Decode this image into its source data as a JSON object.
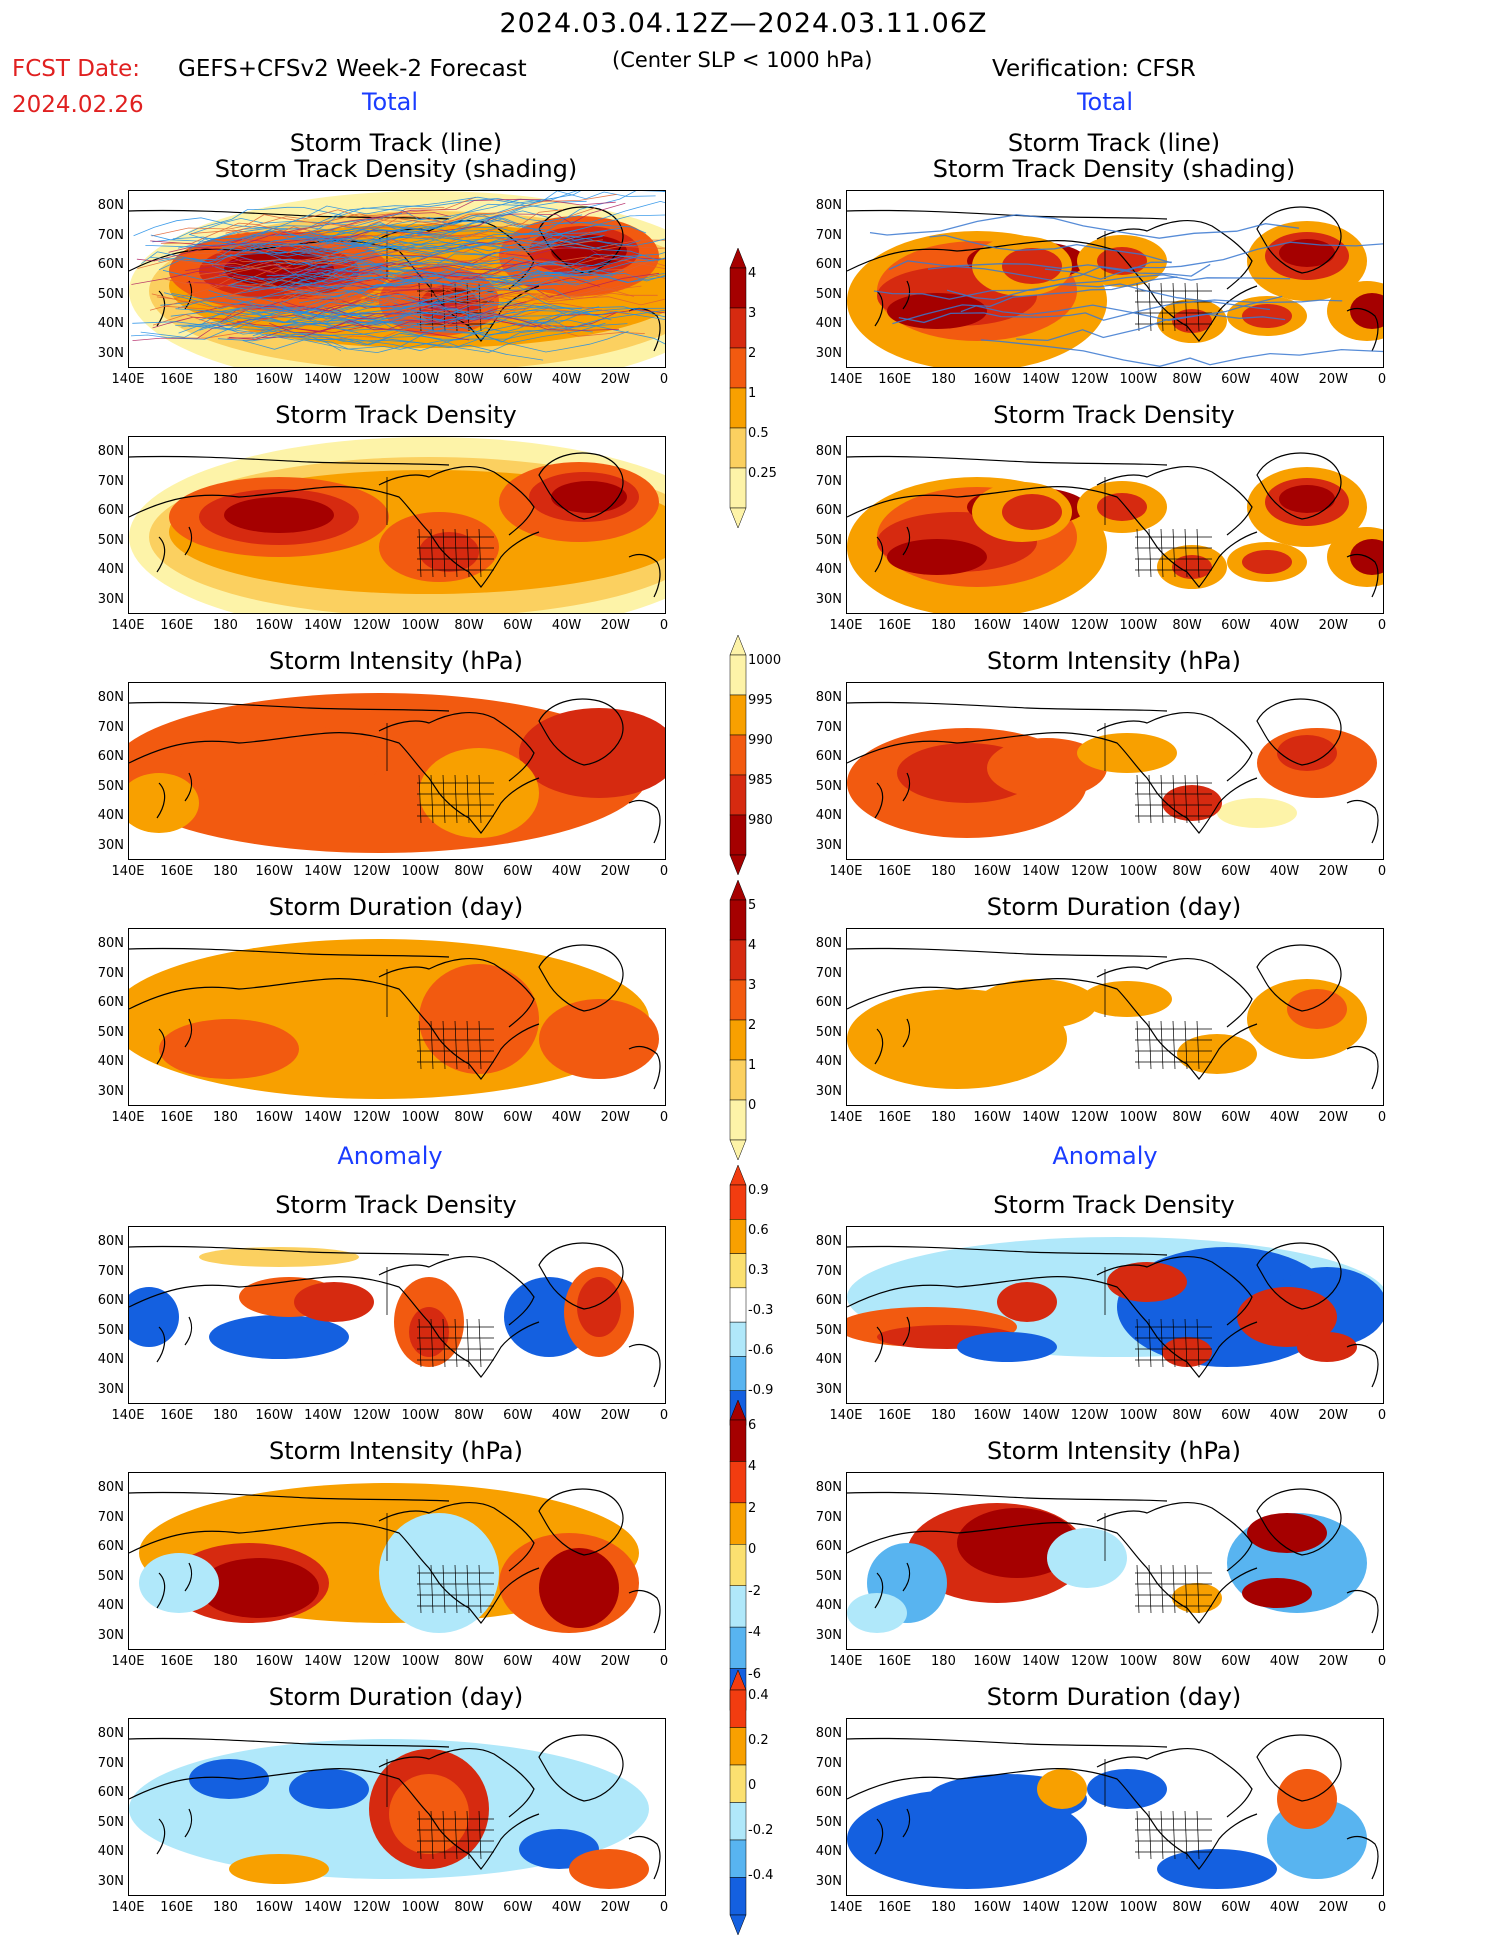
{
  "header": {
    "title": "2024.03.04.12Z—2024.03.11.06Z",
    "fcst_label": "FCST Date:",
    "fcst_model": "GEFS+CFSv2 Week-2 Forecast",
    "fcst_date": "2024.02.26",
    "slp_note": "(Center SLP < 1000 hPa)",
    "verification": "Verification: CFSR"
  },
  "sections": {
    "total": "Total",
    "anomaly": "Anomaly"
  },
  "rows": [
    {
      "title": "Storm Track (line)\nStorm Track Density (shading)"
    },
    {
      "title": "Storm Track Density"
    },
    {
      "title": "Storm Intensity (hPa)"
    },
    {
      "title": "Storm Duration (day)"
    },
    {
      "title": "Storm Track Density"
    },
    {
      "title": "Storm Intensity (hPa)"
    },
    {
      "title": "Storm Duration (day)"
    }
  ],
  "axes": {
    "lat_labels": [
      "80N",
      "70N",
      "60N",
      "50N",
      "40N",
      "30N"
    ],
    "lon_labels": [
      "140E",
      "160E",
      "180",
      "160W",
      "140W",
      "120W",
      "100W",
      "80W",
      "60W",
      "40W",
      "20W",
      "0"
    ]
  },
  "colorbars": [
    {
      "name": "total-density",
      "labels": [
        "4",
        "3",
        "2",
        "1",
        "0.5",
        "0.25"
      ],
      "colors": [
        "#a50000",
        "#d62a10",
        "#f25a10",
        "#f8a000",
        "#fbd060",
        "#fdf3a8"
      ]
    },
    {
      "name": "total-intensity",
      "labels": [
        "1000",
        "995",
        "990",
        "985",
        "980"
      ],
      "colors": [
        "#fdf3a8",
        "#f8a000",
        "#f25a10",
        "#d62a10",
        "#a50000"
      ]
    },
    {
      "name": "total-duration",
      "labels": [
        "5",
        "4",
        "3",
        "2",
        "1",
        "0"
      ],
      "colors": [
        "#a50000",
        "#d62a10",
        "#f25a10",
        "#f8a000",
        "#fbd060",
        "#fdf3a8"
      ]
    },
    {
      "name": "anomaly-density",
      "labels": [
        "0.9",
        "0.6",
        "0.3",
        "-0.3",
        "-0.6",
        "-0.9"
      ],
      "colors": [
        "#f23c10",
        "#f8a000",
        "#fbe070",
        "#ffffff",
        "#b0e8fa",
        "#58b4f0",
        "#1460e0"
      ]
    },
    {
      "name": "anomaly-intensity",
      "labels": [
        "6",
        "4",
        "2",
        "0",
        "-2",
        "-4",
        "-6"
      ],
      "colors": [
        "#a50000",
        "#f23c10",
        "#f8a000",
        "#fbe070",
        "#b0e8fa",
        "#58b4f0",
        "#1460e0"
      ]
    },
    {
      "name": "anomaly-duration",
      "labels": [
        "0.4",
        "0.2",
        "0",
        "-0.2",
        "-0.4"
      ],
      "colors": [
        "#f23c10",
        "#f8a000",
        "#fbe070",
        "#b0e8fa",
        "#58b4f0",
        "#1460e0"
      ]
    }
  ],
  "palette": {
    "pale": "#fdf3a8",
    "yellow": "#fbd060",
    "orange": "#f8a000",
    "darkorange": "#f25a10",
    "red": "#d62a10",
    "maroon": "#a50000",
    "lightblue": "#b0e8fa",
    "midblue": "#58b4f0",
    "blue": "#1460e0",
    "track": "#1e8ce6"
  }
}
